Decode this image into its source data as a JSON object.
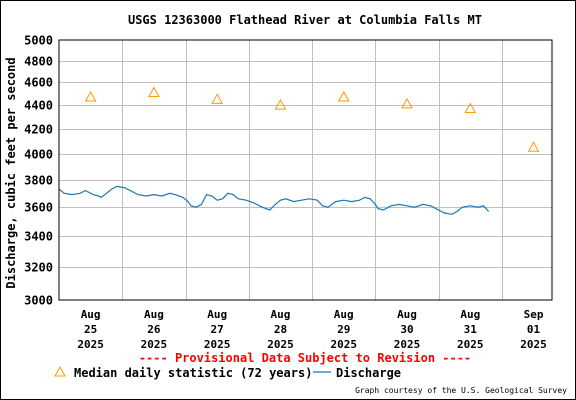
{
  "chart_data": {
    "type": "line",
    "title": "USGS 12363000 Flathead River at Columbia Falls MT",
    "ylabel": "Discharge, cubic feet per second",
    "xlabel": "",
    "ylim": [
      3000,
      5000
    ],
    "yscale": "log",
    "grid": true,
    "y_ticks": [
      3000,
      3200,
      3400,
      3600,
      3800,
      4000,
      4200,
      4400,
      4600,
      4800,
      5000
    ],
    "x_range": [
      "2025-08-25T00:00",
      "2025-09-01T19:00"
    ],
    "x_ticks": [
      {
        "date": "2025-08-25",
        "lines": [
          "Aug",
          "25",
          "2025"
        ]
      },
      {
        "date": "2025-08-26",
        "lines": [
          "Aug",
          "26",
          "2025"
        ]
      },
      {
        "date": "2025-08-27",
        "lines": [
          "Aug",
          "27",
          "2025"
        ]
      },
      {
        "date": "2025-08-28",
        "lines": [
          "Aug",
          "28",
          "2025"
        ]
      },
      {
        "date": "2025-08-29",
        "lines": [
          "Aug",
          "29",
          "2025"
        ]
      },
      {
        "date": "2025-08-30",
        "lines": [
          "Aug",
          "30",
          "2025"
        ]
      },
      {
        "date": "2025-08-31",
        "lines": [
          "Aug",
          "31",
          "2025"
        ]
      },
      {
        "date": "2025-09-01",
        "lines": [
          "Sep",
          "01",
          "2025"
        ]
      }
    ],
    "series": [
      {
        "name": "Median daily statistic (72 years)",
        "kind": "marker",
        "marker": "triangle",
        "color": "#ff9900",
        "points": [
          {
            "x": "2025-08-25T12:00",
            "y": 4470
          },
          {
            "x": "2025-08-26T12:00",
            "y": 4510
          },
          {
            "x": "2025-08-27T12:00",
            "y": 4450
          },
          {
            "x": "2025-08-28T12:00",
            "y": 4400
          },
          {
            "x": "2025-08-29T12:00",
            "y": 4470
          },
          {
            "x": "2025-08-30T12:00",
            "y": 4410
          },
          {
            "x": "2025-08-31T12:00",
            "y": 4370
          },
          {
            "x": "2025-09-01T12:00",
            "y": 4050
          }
        ]
      },
      {
        "name": "Discharge",
        "kind": "line",
        "color": "#1a78b4",
        "points": [
          {
            "x": "2025-08-25T00:00",
            "y": 3730
          },
          {
            "x": "2025-08-25T02:00",
            "y": 3700
          },
          {
            "x": "2025-08-25T05:00",
            "y": 3690
          },
          {
            "x": "2025-08-25T08:00",
            "y": 3700
          },
          {
            "x": "2025-08-25T10:00",
            "y": 3720
          },
          {
            "x": "2025-08-25T13:00",
            "y": 3690
          },
          {
            "x": "2025-08-25T15:00",
            "y": 3680
          },
          {
            "x": "2025-08-25T16:00",
            "y": 3670
          },
          {
            "x": "2025-08-25T18:00",
            "y": 3700
          },
          {
            "x": "2025-08-25T20:00",
            "y": 3730
          },
          {
            "x": "2025-08-25T22:00",
            "y": 3750
          },
          {
            "x": "2025-08-26T01:00",
            "y": 3740
          },
          {
            "x": "2025-08-26T04:00",
            "y": 3710
          },
          {
            "x": "2025-08-26T06:00",
            "y": 3690
          },
          {
            "x": "2025-08-26T09:00",
            "y": 3680
          },
          {
            "x": "2025-08-26T12:00",
            "y": 3690
          },
          {
            "x": "2025-08-26T15:00",
            "y": 3680
          },
          {
            "x": "2025-08-26T18:00",
            "y": 3700
          },
          {
            "x": "2025-08-26T20:00",
            "y": 3690
          },
          {
            "x": "2025-08-26T23:00",
            "y": 3670
          },
          {
            "x": "2025-08-27T01:00",
            "y": 3640
          },
          {
            "x": "2025-08-27T02:00",
            "y": 3610
          },
          {
            "x": "2025-08-27T04:00",
            "y": 3600
          },
          {
            "x": "2025-08-27T06:00",
            "y": 3620
          },
          {
            "x": "2025-08-27T08:00",
            "y": 3690
          },
          {
            "x": "2025-08-27T10:00",
            "y": 3680
          },
          {
            "x": "2025-08-27T12:00",
            "y": 3650
          },
          {
            "x": "2025-08-27T14:00",
            "y": 3660
          },
          {
            "x": "2025-08-27T16:00",
            "y": 3700
          },
          {
            "x": "2025-08-27T18:00",
            "y": 3690
          },
          {
            "x": "2025-08-27T20:00",
            "y": 3660
          },
          {
            "x": "2025-08-27T23:00",
            "y": 3650
          },
          {
            "x": "2025-08-28T02:00",
            "y": 3630
          },
          {
            "x": "2025-08-28T05:00",
            "y": 3600
          },
          {
            "x": "2025-08-28T08:00",
            "y": 3580
          },
          {
            "x": "2025-08-28T10:00",
            "y": 3620
          },
          {
            "x": "2025-08-28T12:00",
            "y": 3650
          },
          {
            "x": "2025-08-28T14:00",
            "y": 3660
          },
          {
            "x": "2025-08-28T17:00",
            "y": 3640
          },
          {
            "x": "2025-08-28T20:00",
            "y": 3650
          },
          {
            "x": "2025-08-28T23:00",
            "y": 3660
          },
          {
            "x": "2025-08-29T02:00",
            "y": 3650
          },
          {
            "x": "2025-08-29T04:00",
            "y": 3610
          },
          {
            "x": "2025-08-29T06:00",
            "y": 3600
          },
          {
            "x": "2025-08-29T09:00",
            "y": 3640
          },
          {
            "x": "2025-08-29T12:00",
            "y": 3650
          },
          {
            "x": "2025-08-29T15:00",
            "y": 3640
          },
          {
            "x": "2025-08-29T18:00",
            "y": 3650
          },
          {
            "x": "2025-08-29T20:00",
            "y": 3670
          },
          {
            "x": "2025-08-29T22:00",
            "y": 3660
          },
          {
            "x": "2025-08-30T00:00",
            "y": 3620
          },
          {
            "x": "2025-08-30T01:00",
            "y": 3590
          },
          {
            "x": "2025-08-30T03:00",
            "y": 3580
          },
          {
            "x": "2025-08-30T06:00",
            "y": 3610
          },
          {
            "x": "2025-08-30T09:00",
            "y": 3620
          },
          {
            "x": "2025-08-30T12:00",
            "y": 3610
          },
          {
            "x": "2025-08-30T15:00",
            "y": 3600
          },
          {
            "x": "2025-08-30T18:00",
            "y": 3620
          },
          {
            "x": "2025-08-30T21:00",
            "y": 3610
          },
          {
            "x": "2025-08-31T00:00",
            "y": 3580
          },
          {
            "x": "2025-08-31T02:00",
            "y": 3560
          },
          {
            "x": "2025-08-31T05:00",
            "y": 3550
          },
          {
            "x": "2025-08-31T07:00",
            "y": 3570
          },
          {
            "x": "2025-08-31T09:00",
            "y": 3600
          },
          {
            "x": "2025-08-31T12:00",
            "y": 3610
          },
          {
            "x": "2025-08-31T15:00",
            "y": 3600
          },
          {
            "x": "2025-08-31T17:00",
            "y": 3610
          },
          {
            "x": "2025-08-31T18:00",
            "y": 3590
          },
          {
            "x": "2025-08-31T19:00",
            "y": 3570
          }
        ]
      }
    ]
  },
  "provisional_notice": "---- Provisional Data Subject to Revision ----",
  "credit": "Graph courtesy of the U.S. Geological Survey"
}
